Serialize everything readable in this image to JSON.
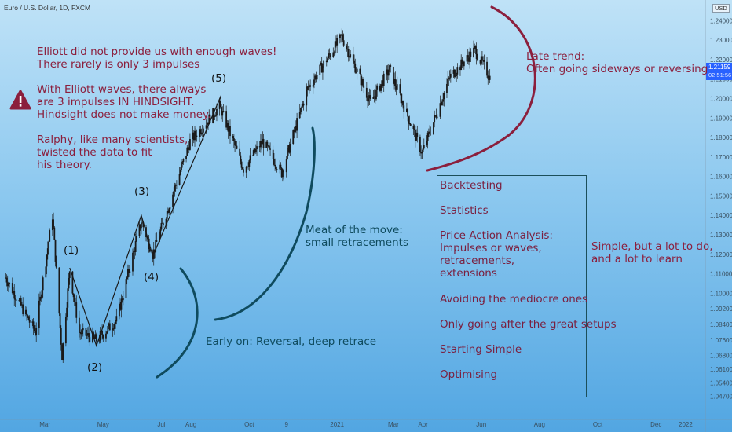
{
  "symbol": {
    "title": "Euro / U.S. Dollar, 1D, FXCM"
  },
  "currency": "USD",
  "price_label": {
    "value": "1.21159",
    "countdown": "02:51:56"
  },
  "warning": {
    "icon": "warning-triangle-icon",
    "color": "#8b1f3d"
  },
  "notes": {
    "elliott_lines": [
      "Elliott did not provide us with enough waves!",
      "There rarely is only 3 impulses"
    ],
    "hindsight_lines": [
      "With Elliott waves, there always",
      "are 3 impulses IN HINDSIGHT.",
      "Hindsight does not make money."
    ],
    "ralphy_lines": [
      "Ralphy, like many scientists,",
      "twisted the data to fit",
      "his theory."
    ],
    "late_trend_lines": [
      "Late trend:",
      "Often going sideways or reversing"
    ],
    "meat_lines": [
      "Meat of the move:",
      "small retracements"
    ],
    "early_on": "Early on: Reversal, deep retrace",
    "simple_lines": [
      "Simple, but a lot to do,",
      "and a lot to learn"
    ]
  },
  "wave_labels": [
    "(1)",
    "(2)",
    "(3)",
    "(4)",
    "(5)"
  ],
  "checklist": [
    "Backtesting",
    "Statistics",
    "Price Action Analysis:",
    "Impulses or waves,",
    "retracements,",
    "extensions",
    "Avoiding the mediocre ones",
    "Only going after the great setups",
    "Starting Simple",
    "Optimising"
  ],
  "colors": {
    "annotation": "#8b1f3d",
    "teal": "#0f4b5e",
    "candle": "#1a1a1a",
    "price_badge": "#2962ff"
  },
  "chart_data": {
    "type": "candlestick",
    "title": "Euro / U.S. Dollar, 1D, FXCM",
    "ylim": [
      1.04,
      1.245
    ],
    "y_ticks": [
      "1.24000",
      "1.23000",
      "1.22000",
      "1.21000",
      "1.20000",
      "1.19000",
      "1.18000",
      "1.17000",
      "1.16000",
      "1.15000",
      "1.14000",
      "1.13000",
      "1.12000",
      "1.11000",
      "1.10000",
      "1.09200",
      "1.08400",
      "1.07600",
      "1.06800",
      "1.06100",
      "1.05400",
      "1.04700"
    ],
    "x_ticks": [
      "Mar",
      "May",
      "Jul",
      "Aug",
      "Oct",
      "9",
      "2021",
      "Mar",
      "Apr",
      "Jun",
      "Aug",
      "Oct",
      "Dec",
      "2022"
    ],
    "close_path": [
      {
        "date": "2020-01-20",
        "close": 1.108
      },
      {
        "date": "2020-02-20",
        "close": 1.08
      },
      {
        "date": "2020-03-09",
        "close": 1.14
      },
      {
        "date": "2020-03-19",
        "close": 1.068
      },
      {
        "date": "2020-03-27",
        "close": 1.112
      },
      {
        "date": "2020-04-06",
        "close": 1.08
      },
      {
        "date": "2020-04-24",
        "close": 1.076
      },
      {
        "date": "2020-05-15",
        "close": 1.086
      },
      {
        "date": "2020-06-10",
        "close": 1.137
      },
      {
        "date": "2020-06-22",
        "close": 1.12
      },
      {
        "date": "2020-07-31",
        "close": 1.178
      },
      {
        "date": "2020-08-31",
        "close": 1.196
      },
      {
        "date": "2020-09-25",
        "close": 1.164
      },
      {
        "date": "2020-10-15",
        "close": 1.178
      },
      {
        "date": "2020-11-04",
        "close": 1.162
      },
      {
        "date": "2020-12-01",
        "close": 1.205
      },
      {
        "date": "2021-01-06",
        "close": 1.232
      },
      {
        "date": "2021-02-05",
        "close": 1.198
      },
      {
        "date": "2021-02-25",
        "close": 1.215
      },
      {
        "date": "2021-03-31",
        "close": 1.172
      },
      {
        "date": "2021-04-29",
        "close": 1.211
      },
      {
        "date": "2021-05-25",
        "close": 1.225
      },
      {
        "date": "2021-06-10",
        "close": 1.211
      }
    ]
  }
}
